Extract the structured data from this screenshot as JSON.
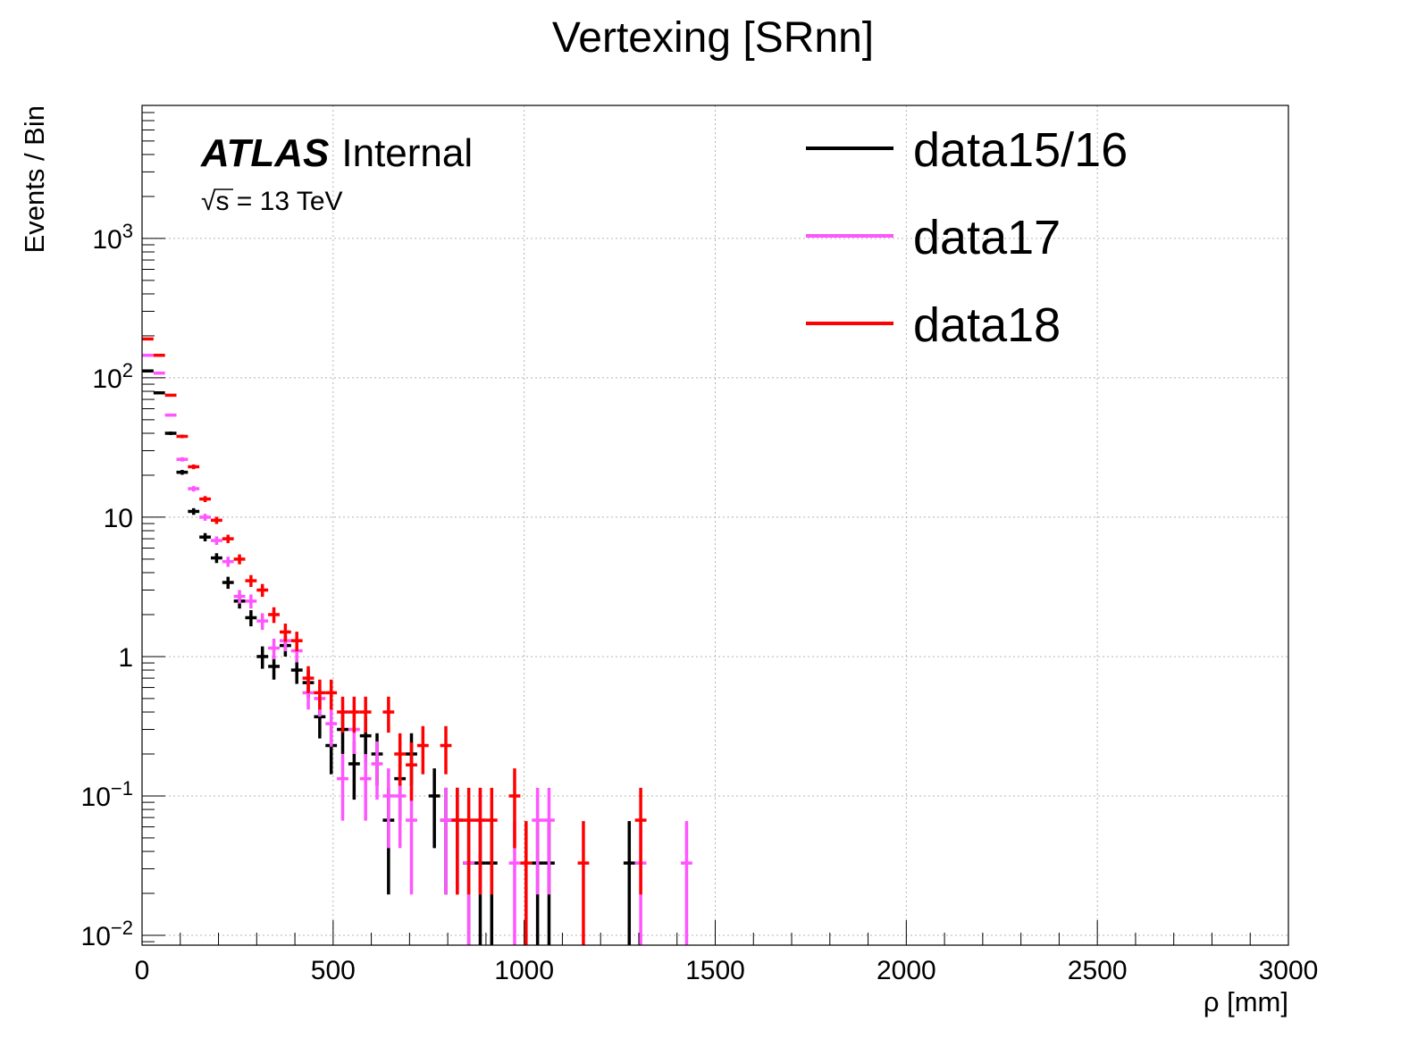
{
  "chart_data": {
    "type": "scatter",
    "title": "Vertexing [SRnn]",
    "xlabel": "ρ [mm]",
    "ylabel": "Events / Bin",
    "xlim": [
      0,
      3000
    ],
    "ylim": [
      0.0085,
      9000
    ],
    "yscale": "log",
    "grid": true,
    "legend_position": "top-right",
    "atlas_label": {
      "bold": "ATLAS",
      "normal": "Internal"
    },
    "energy_label": {
      "sqrt": "√",
      "s": "s",
      "rest": " = 13 TeV"
    },
    "x_ticks": [
      {
        "value": 0,
        "label": "0"
      },
      {
        "value": 500,
        "label": "500"
      },
      {
        "value": 1000,
        "label": "1000"
      },
      {
        "value": 1500,
        "label": "1500"
      },
      {
        "value": 2000,
        "label": "2000"
      },
      {
        "value": 2500,
        "label": "2500"
      },
      {
        "value": 3000,
        "label": "3000"
      }
    ],
    "y_ticks": [
      {
        "value": 0.01,
        "base": "10",
        "exp": "−2"
      },
      {
        "value": 0.1,
        "base": "10",
        "exp": "−1"
      },
      {
        "value": 1,
        "base": "1",
        "exp": ""
      },
      {
        "value": 10,
        "base": "10",
        "exp": ""
      },
      {
        "value": 100,
        "base": "10",
        "exp": "2"
      },
      {
        "value": 1000,
        "base": "10",
        "exp": "3"
      }
    ],
    "bin_width": 30,
    "series": [
      {
        "name": "data15/16",
        "color": "#000000",
        "x": [
          15,
          45,
          75,
          105,
          135,
          165,
          195,
          225,
          255,
          285,
          315,
          345,
          375,
          405,
          435,
          465,
          495,
          525,
          555,
          585,
          615,
          645,
          675,
          705,
          765,
          795,
          825,
          855,
          885,
          915,
          1035,
          1065,
          1275
        ],
        "y": [
          112,
          78,
          40,
          21,
          11,
          7.2,
          5.1,
          3.4,
          2.5,
          1.9,
          1.0,
          0.85,
          1.2,
          0.8,
          0.65,
          0.37,
          0.23,
          0.3,
          0.17,
          0.27,
          0.2,
          0.067,
          0.133,
          0.2,
          0.1,
          0.067,
          0.067,
          0.033,
          0.033,
          0.033,
          0.033,
          0.033,
          0.033
        ]
      },
      {
        "name": "data17",
        "color": "#ff55ff",
        "x": [
          15,
          45,
          75,
          105,
          135,
          165,
          195,
          225,
          255,
          285,
          315,
          345,
          375,
          405,
          435,
          465,
          495,
          525,
          555,
          585,
          615,
          645,
          675,
          705,
          795,
          825,
          855,
          885,
          975,
          1035,
          1065,
          1305,
          1425
        ],
        "y": [
          145,
          108,
          54,
          26,
          16,
          10,
          6.8,
          4.8,
          2.7,
          2.5,
          1.8,
          1.15,
          1.3,
          1.1,
          0.55,
          0.5,
          0.33,
          0.133,
          0.3,
          0.133,
          0.17,
          0.1,
          0.1,
          0.067,
          0.067,
          0.067,
          0.033,
          0.067,
          0.033,
          0.067,
          0.067,
          0.033,
          0.033
        ]
      },
      {
        "name": "data18",
        "color": "#ff0000",
        "x": [
          15,
          45,
          75,
          105,
          135,
          165,
          195,
          225,
          255,
          285,
          315,
          345,
          375,
          405,
          435,
          465,
          495,
          525,
          555,
          585,
          645,
          675,
          705,
          735,
          795,
          825,
          855,
          885,
          915,
          975,
          1005,
          1155,
          1305
        ],
        "y": [
          190,
          145,
          75,
          38,
          23,
          13.5,
          9.5,
          7,
          5,
          3.5,
          3,
          2,
          1.5,
          1.3,
          0.7,
          0.55,
          0.55,
          0.4,
          0.4,
          0.4,
          0.4,
          0.2,
          0.167,
          0.23,
          0.23,
          0.067,
          0.067,
          0.067,
          0.067,
          0.1,
          0.033,
          0.033,
          0.067
        ]
      }
    ]
  }
}
